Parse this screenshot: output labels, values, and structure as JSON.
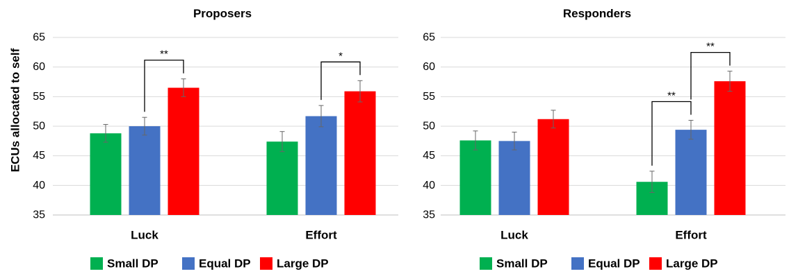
{
  "colors": {
    "Small DP": "#00b050",
    "Equal DP": "#4472c4",
    "Large DP": "#ff0000",
    "grid": "#d9d9d9",
    "axis": "#bfbfbf",
    "text": "#000000",
    "error_bar": "#666666"
  },
  "ylabel": "ECUs allocated to self",
  "chart_data": [
    {
      "type": "bar",
      "title": "Proposers",
      "categories": [
        "Luck",
        "Effort"
      ],
      "ylim": [
        35,
        65
      ],
      "yticks": [
        35,
        40,
        45,
        50,
        55,
        60,
        65
      ],
      "grid": true,
      "legend_position": "bottom",
      "series": [
        {
          "name": "Small DP",
          "values": [
            48.8,
            47.4
          ],
          "errors": [
            1.5,
            1.7
          ]
        },
        {
          "name": "Equal DP",
          "values": [
            50.0,
            51.7
          ],
          "errors": [
            1.5,
            1.8
          ]
        },
        {
          "name": "Large DP",
          "values": [
            56.5,
            55.9
          ],
          "errors": [
            1.5,
            1.8
          ]
        }
      ],
      "annotations": [
        {
          "category": "Luck",
          "from": "Equal DP",
          "to": "Large DP",
          "label": "**"
        },
        {
          "category": "Effort",
          "from": "Equal DP",
          "to": "Large DP",
          "label": "*"
        }
      ]
    },
    {
      "type": "bar",
      "title": "Responders",
      "categories": [
        "Luck",
        "Effort"
      ],
      "ylim": [
        35,
        65
      ],
      "yticks": [
        35,
        40,
        45,
        50,
        55,
        60,
        65
      ],
      "grid": true,
      "legend_position": "bottom",
      "series": [
        {
          "name": "Small DP",
          "values": [
            47.6,
            40.6
          ],
          "errors": [
            1.6,
            1.8
          ]
        },
        {
          "name": "Equal DP",
          "values": [
            47.5,
            49.4
          ],
          "errors": [
            1.5,
            1.6
          ]
        },
        {
          "name": "Large DP",
          "values": [
            51.2,
            57.6
          ],
          "errors": [
            1.5,
            1.7
          ]
        }
      ],
      "annotations": [
        {
          "category": "Effort",
          "from": "Small DP",
          "to": "Equal DP",
          "label": "**"
        },
        {
          "category": "Effort",
          "from": "Equal DP",
          "to": "Large DP",
          "label": "**"
        }
      ]
    }
  ]
}
